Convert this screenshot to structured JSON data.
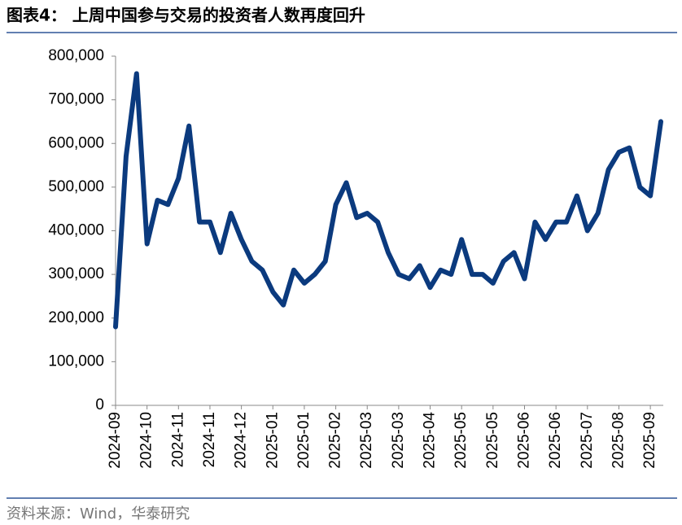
{
  "chart_data": {
    "type": "line",
    "title": "图表4： 上周中国参与交易的投资者人数再度回升",
    "source": "资料来源：Wind，华泰研究",
    "categories": [
      "2024-09",
      null,
      null,
      "2024-10",
      null,
      null,
      "2024-11",
      null,
      null,
      "2024-11",
      null,
      null,
      "2024-12",
      null,
      null,
      "2025-01",
      null,
      null,
      "2025-01",
      null,
      null,
      "2025-02",
      null,
      null,
      "2025-03",
      null,
      null,
      "2025-03",
      null,
      null,
      "2025-04",
      null,
      null,
      "2025-05",
      null,
      null,
      "2025-05",
      null,
      null,
      "2025-06",
      null,
      null,
      "2025-06",
      null,
      null,
      "2025-07",
      null,
      null,
      "2025-08",
      null,
      null,
      "2025-09",
      null
    ],
    "series": [
      {
        "name": "参与交易的投资者人数",
        "color": "#0b3a7e",
        "values": [
          180000,
          570000,
          760000,
          370000,
          470000,
          460000,
          520000,
          640000,
          420000,
          420000,
          350000,
          440000,
          380000,
          330000,
          310000,
          260000,
          230000,
          310000,
          280000,
          300000,
          330000,
          460000,
          510000,
          430000,
          440000,
          420000,
          350000,
          300000,
          290000,
          320000,
          270000,
          310000,
          300000,
          380000,
          300000,
          300000,
          280000,
          330000,
          350000,
          290000,
          420000,
          380000,
          420000,
          420000,
          480000,
          400000,
          440000,
          540000,
          580000,
          590000,
          500000,
          480000,
          650000
        ]
      }
    ],
    "ylim": [
      0,
      800000
    ],
    "yticks": [
      0,
      {
        "value": 100000,
        "label": "100,000"
      },
      {
        "value": 200000,
        "label": "200,000"
      },
      {
        "value": 300000,
        "label": "300,000"
      },
      {
        "value": 400000,
        "label": "400,000"
      },
      {
        "value": 500000,
        "label": "500,000"
      },
      {
        "value": 600000,
        "label": "600,000"
      },
      {
        "value": 700000,
        "label": "700,000"
      },
      {
        "value": 800000,
        "label": "800,000"
      }
    ],
    "grid": false
  }
}
